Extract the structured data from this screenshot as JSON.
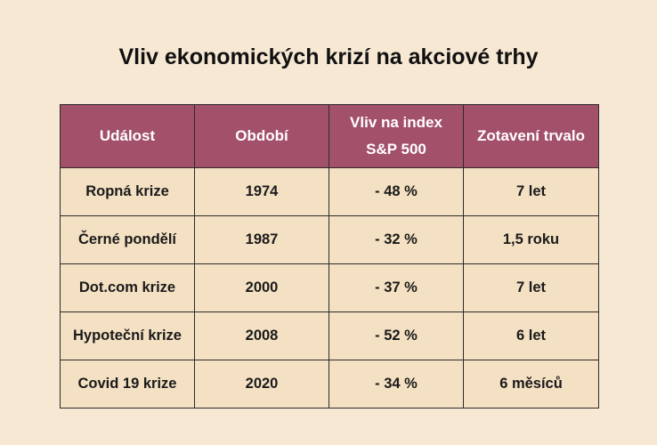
{
  "title": "Vliv ekonomických krizí na akciové trhy",
  "table": {
    "header": [
      "Událost",
      "Období",
      "Vliv na index S&P 500",
      "Zotavení trvalo"
    ],
    "rows": [
      [
        "Ropná krize",
        "1974",
        "- 48 %",
        "7 let"
      ],
      [
        "Černé pondělí",
        "1987",
        "- 32 %",
        "1,5 roku"
      ],
      [
        "Dot.com krize",
        "2000",
        "- 37 %",
        "7 let"
      ],
      [
        "Hypoteční krize",
        "2008",
        "- 52 %",
        "6 let"
      ],
      [
        "Covid 19 krize",
        "2020",
        "- 34 %",
        "6 měsíců"
      ]
    ]
  }
}
